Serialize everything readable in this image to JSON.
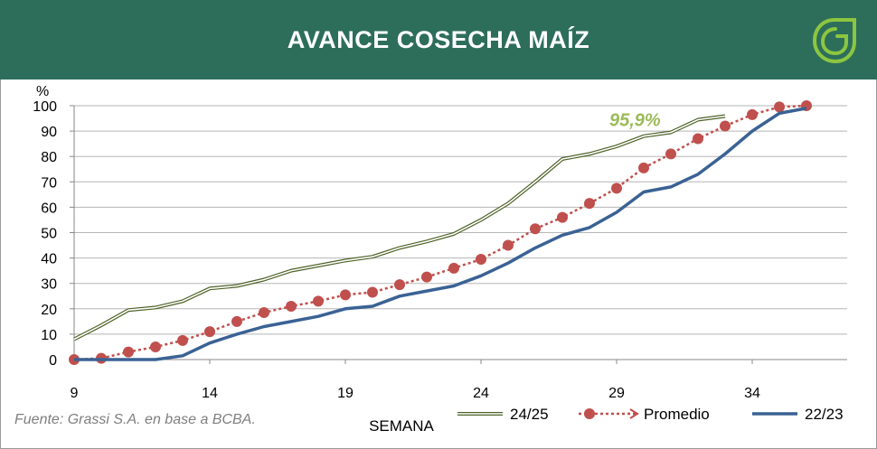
{
  "header": {
    "title": "AVANCE COSECHA MAÍZ",
    "logo_icon": "leaf-logo-icon"
  },
  "source_note": "Fuente: Grassi S.A. en base a BCBA.",
  "colors": {
    "header_bg": "#2d6e5b",
    "series_2425": "#4f6228",
    "promedio": "#c0504d",
    "series_2223": "#3a6294",
    "annotation": "#9bbb59"
  },
  "chart_data": {
    "type": "line",
    "title": "AVANCE COSECHA MAÍZ",
    "xlabel": "SEMANA",
    "ylabel": "%",
    "xlim": [
      9,
      37.5
    ],
    "ylim": [
      0,
      100
    ],
    "x_ticks": [
      9,
      14,
      19,
      24,
      29,
      34
    ],
    "y_ticks": [
      0,
      10,
      20,
      30,
      40,
      50,
      60,
      70,
      80,
      90,
      100
    ],
    "grid": "horizontal",
    "legend": "bottom",
    "annotation": {
      "text": "95,9%",
      "x": 30,
      "y": 95.9
    },
    "series": [
      {
        "name": "24/25",
        "style": "double-line",
        "color": "#4f6228",
        "x": [
          9,
          10,
          11,
          12,
          13,
          14,
          15,
          16,
          17,
          18,
          19,
          20,
          21,
          22,
          23,
          24,
          25,
          26,
          27,
          28,
          29,
          30,
          31,
          32,
          33
        ],
        "values": [
          8,
          13.5,
          19.5,
          20.5,
          23,
          28,
          29,
          31.5,
          35,
          37,
          39,
          40.5,
          44,
          46.5,
          49.5,
          55,
          61.5,
          70,
          79,
          81,
          84,
          88,
          89.5,
          94.5,
          95.9
        ]
      },
      {
        "name": "Promedio",
        "style": "dotted-markers",
        "color": "#c0504d",
        "x": [
          9,
          10,
          11,
          12,
          13,
          14,
          15,
          16,
          17,
          18,
          19,
          20,
          21,
          22,
          23,
          24,
          25,
          26,
          27,
          28,
          29,
          30,
          31,
          32,
          33,
          34,
          35,
          36
        ],
        "values": [
          0,
          0.5,
          3,
          5,
          7.5,
          11,
          15,
          18.5,
          21,
          23,
          25.5,
          26.5,
          29.5,
          32.5,
          36,
          39.5,
          45,
          51.5,
          56,
          61.5,
          67.5,
          75.5,
          81,
          87,
          92,
          96.5,
          99.5,
          100
        ]
      },
      {
        "name": "22/23",
        "style": "solid",
        "color": "#3a6294",
        "x": [
          9,
          10,
          11,
          12,
          13,
          14,
          15,
          16,
          17,
          18,
          19,
          20,
          21,
          22,
          23,
          24,
          25,
          26,
          27,
          28,
          29,
          30,
          31,
          32,
          33,
          34,
          35,
          36
        ],
        "values": [
          0,
          0,
          0,
          0,
          1.5,
          6.5,
          10,
          13,
          15,
          17,
          20,
          21,
          25,
          27,
          29,
          33,
          38,
          44,
          49,
          52,
          58,
          66,
          68,
          73,
          81,
          90,
          97,
          99
        ]
      }
    ]
  }
}
